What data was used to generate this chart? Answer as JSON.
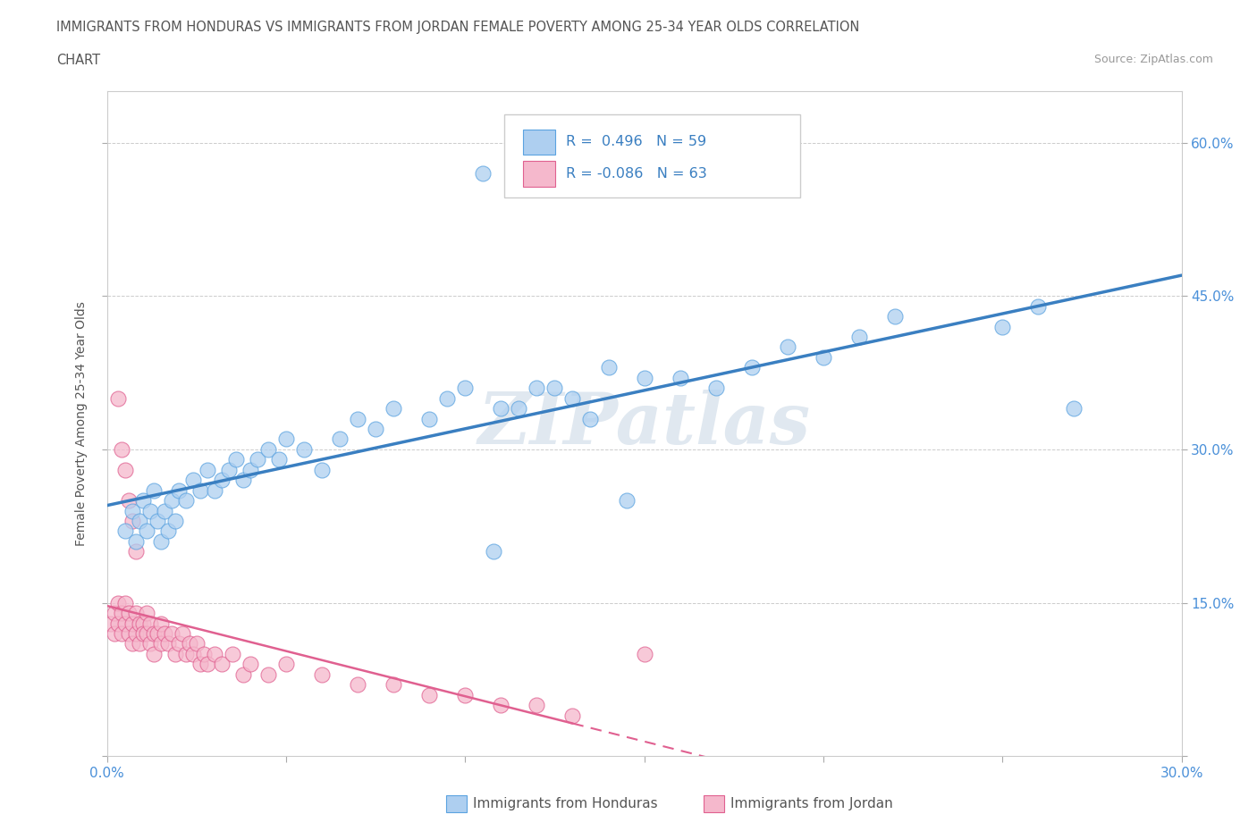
{
  "title_line1": "IMMIGRANTS FROM HONDURAS VS IMMIGRANTS FROM JORDAN FEMALE POVERTY AMONG 25-34 YEAR OLDS CORRELATION",
  "title_line2": "CHART",
  "source": "Source: ZipAtlas.com",
  "ylabel": "Female Poverty Among 25-34 Year Olds",
  "xlim": [
    0.0,
    0.3
  ],
  "ylim": [
    0.0,
    0.65
  ],
  "xticks": [
    0.0,
    0.05,
    0.1,
    0.15,
    0.2,
    0.25,
    0.3
  ],
  "xtick_labels": [
    "0.0%",
    "",
    "",
    "",
    "",
    "",
    "30.0%"
  ],
  "yticks": [
    0.0,
    0.15,
    0.3,
    0.45,
    0.6
  ],
  "ytick_labels": [
    "",
    "15.0%",
    "30.0%",
    "45.0%",
    "60.0%"
  ],
  "color_honduras": "#aecff0",
  "color_jordan": "#f5b8cc",
  "edge_honduras": "#5ba3e0",
  "edge_jordan": "#e06090",
  "line_color_honduras": "#3a7fc1",
  "line_color_jordan": "#e06090",
  "honduras_x": [
    0.005,
    0.007,
    0.008,
    0.009,
    0.01,
    0.011,
    0.012,
    0.013,
    0.014,
    0.015,
    0.016,
    0.017,
    0.018,
    0.019,
    0.02,
    0.022,
    0.024,
    0.026,
    0.028,
    0.03,
    0.032,
    0.034,
    0.036,
    0.038,
    0.04,
    0.042,
    0.045,
    0.048,
    0.05,
    0.055,
    0.06,
    0.065,
    0.07,
    0.075,
    0.08,
    0.09,
    0.095,
    0.1,
    0.11,
    0.12,
    0.13,
    0.14,
    0.15,
    0.16,
    0.17,
    0.18,
    0.19,
    0.2,
    0.21,
    0.22,
    0.115,
    0.125,
    0.135,
    0.145,
    0.108,
    0.25,
    0.26,
    0.27,
    0.105
  ],
  "honduras_y": [
    0.22,
    0.24,
    0.21,
    0.23,
    0.25,
    0.22,
    0.24,
    0.26,
    0.23,
    0.21,
    0.24,
    0.22,
    0.25,
    0.23,
    0.26,
    0.25,
    0.27,
    0.26,
    0.28,
    0.26,
    0.27,
    0.28,
    0.29,
    0.27,
    0.28,
    0.29,
    0.3,
    0.29,
    0.31,
    0.3,
    0.28,
    0.31,
    0.33,
    0.32,
    0.34,
    0.33,
    0.35,
    0.36,
    0.34,
    0.36,
    0.35,
    0.38,
    0.37,
    0.37,
    0.36,
    0.38,
    0.4,
    0.39,
    0.41,
    0.43,
    0.34,
    0.36,
    0.33,
    0.25,
    0.2,
    0.42,
    0.44,
    0.34,
    0.57
  ],
  "jordan_x": [
    0.001,
    0.002,
    0.002,
    0.003,
    0.003,
    0.004,
    0.004,
    0.005,
    0.005,
    0.006,
    0.006,
    0.007,
    0.007,
    0.008,
    0.008,
    0.009,
    0.009,
    0.01,
    0.01,
    0.011,
    0.011,
    0.012,
    0.012,
    0.013,
    0.013,
    0.014,
    0.015,
    0.015,
    0.016,
    0.017,
    0.018,
    0.019,
    0.02,
    0.021,
    0.022,
    0.023,
    0.024,
    0.025,
    0.026,
    0.027,
    0.028,
    0.03,
    0.032,
    0.035,
    0.038,
    0.04,
    0.045,
    0.05,
    0.06,
    0.07,
    0.08,
    0.09,
    0.1,
    0.11,
    0.12,
    0.003,
    0.004,
    0.005,
    0.006,
    0.007,
    0.008,
    0.13,
    0.15
  ],
  "jordan_y": [
    0.13,
    0.14,
    0.12,
    0.15,
    0.13,
    0.14,
    0.12,
    0.15,
    0.13,
    0.14,
    0.12,
    0.13,
    0.11,
    0.14,
    0.12,
    0.13,
    0.11,
    0.13,
    0.12,
    0.14,
    0.12,
    0.13,
    0.11,
    0.12,
    0.1,
    0.12,
    0.13,
    0.11,
    0.12,
    0.11,
    0.12,
    0.1,
    0.11,
    0.12,
    0.1,
    0.11,
    0.1,
    0.11,
    0.09,
    0.1,
    0.09,
    0.1,
    0.09,
    0.1,
    0.08,
    0.09,
    0.08,
    0.09,
    0.08,
    0.07,
    0.07,
    0.06,
    0.06,
    0.05,
    0.05,
    0.35,
    0.3,
    0.28,
    0.25,
    0.23,
    0.2,
    0.04,
    0.1
  ]
}
